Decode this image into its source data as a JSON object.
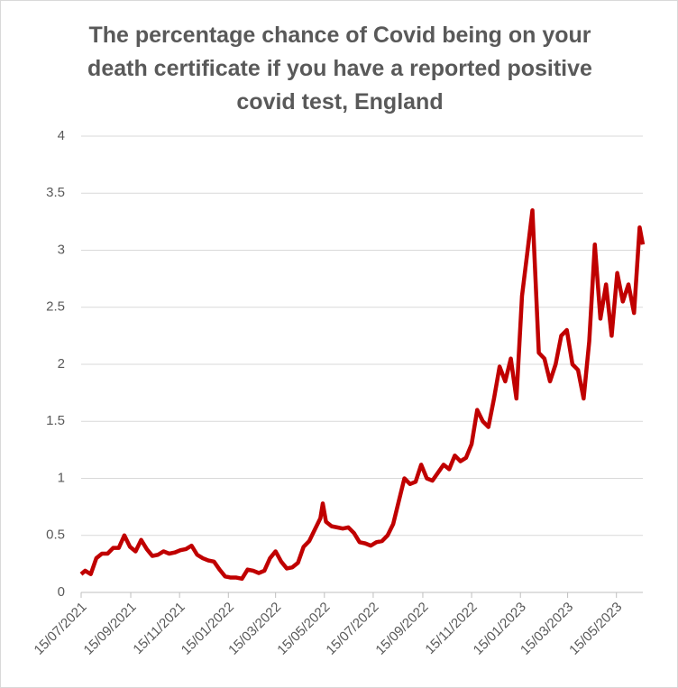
{
  "chart_data": {
    "type": "line",
    "title": "The percentage chance of Covid being on your death certificate if you have a reported positive covid test, England",
    "x": [
      "15/07/2021",
      "20/07/2021",
      "27/07/2021",
      "03/08/2021",
      "10/08/2021",
      "17/08/2021",
      "24/08/2021",
      "31/08/2021",
      "07/09/2021",
      "14/09/2021",
      "21/09/2021",
      "28/09/2021",
      "05/10/2021",
      "12/10/2021",
      "19/10/2021",
      "26/10/2021",
      "02/11/2021",
      "09/11/2021",
      "16/11/2021",
      "23/11/2021",
      "30/11/2021",
      "07/12/2021",
      "14/12/2021",
      "21/12/2021",
      "28/12/2021",
      "04/01/2022",
      "11/01/2022",
      "18/01/2022",
      "25/01/2022",
      "01/02/2022",
      "08/02/2022",
      "15/02/2022",
      "22/02/2022",
      "01/03/2022",
      "08/03/2022",
      "15/03/2022",
      "22/03/2022",
      "29/03/2022",
      "05/04/2022",
      "12/04/2022",
      "19/04/2022",
      "26/04/2022",
      "03/05/2022",
      "10/05/2022",
      "13/05/2022",
      "17/05/2022",
      "24/05/2022",
      "31/05/2022",
      "07/06/2022",
      "14/06/2022",
      "21/06/2022",
      "28/06/2022",
      "05/07/2022",
      "12/07/2022",
      "19/07/2022",
      "26/07/2022",
      "02/08/2022",
      "09/08/2022",
      "16/08/2022",
      "23/08/2022",
      "30/08/2022",
      "06/09/2022",
      "13/09/2022",
      "20/09/2022",
      "27/09/2022",
      "04/10/2022",
      "11/10/2022",
      "18/10/2022",
      "25/10/2022",
      "01/11/2022",
      "08/11/2022",
      "15/11/2022",
      "22/11/2022",
      "29/11/2022",
      "06/12/2022",
      "13/12/2022",
      "20/12/2022",
      "27/12/2022",
      "03/01/2023",
      "10/01/2023",
      "17/01/2023",
      "24/01/2023",
      "30/01/2023",
      "07/02/2023",
      "14/02/2023",
      "21/02/2023",
      "28/02/2023",
      "07/03/2023",
      "14/03/2023",
      "21/03/2023",
      "28/03/2023",
      "04/04/2023",
      "11/04/2023",
      "18/04/2023",
      "25/04/2023",
      "02/05/2023",
      "09/05/2023",
      "16/05/2023",
      "23/05/2023",
      "30/05/2023",
      "06/06/2023",
      "13/06/2023",
      "17/06/2023"
    ],
    "series": [
      {
        "name": "Percentage chance",
        "color": "#c00000",
        "values": [
          0.16,
          0.19,
          0.16,
          0.3,
          0.34,
          0.34,
          0.39,
          0.39,
          0.5,
          0.4,
          0.36,
          0.46,
          0.38,
          0.32,
          0.33,
          0.36,
          0.34,
          0.35,
          0.37,
          0.38,
          0.41,
          0.33,
          0.3,
          0.28,
          0.27,
          0.2,
          0.14,
          0.13,
          0.13,
          0.12,
          0.2,
          0.19,
          0.17,
          0.19,
          0.3,
          0.36,
          0.27,
          0.21,
          0.22,
          0.26,
          0.4,
          0.45,
          0.55,
          0.65,
          0.78,
          0.62,
          0.58,
          0.57,
          0.56,
          0.57,
          0.52,
          0.44,
          0.43,
          0.41,
          0.44,
          0.45,
          0.5,
          0.6,
          0.8,
          1.0,
          0.95,
          0.97,
          1.12,
          1.0,
          0.98,
          1.05,
          1.12,
          1.08,
          1.2,
          1.15,
          1.18,
          1.3,
          1.6,
          1.5,
          1.45,
          1.7,
          1.98,
          1.85,
          2.05,
          1.7,
          2.6,
          3.0,
          3.35,
          2.1,
          2.05,
          1.85,
          2.0,
          2.25,
          2.3,
          2.0,
          1.95,
          1.7,
          2.2,
          3.05,
          2.4,
          2.7,
          2.25,
          2.8,
          2.55,
          2.7,
          2.45,
          3.2,
          3.05
        ]
      }
    ],
    "xlim": [
      "15/07/2021",
      "17/06/2023"
    ],
    "xticks": [
      "15/07/2021",
      "15/09/2021",
      "15/11/2021",
      "15/01/2022",
      "15/03/2022",
      "15/05/2022",
      "15/07/2022",
      "15/09/2022",
      "15/11/2022",
      "15/01/2023",
      "15/03/2023",
      "15/05/2023"
    ],
    "ylim": [
      0,
      4
    ],
    "yticks": [
      0,
      0.5,
      1,
      1.5,
      2,
      2.5,
      3,
      3.5,
      4
    ],
    "grid": true
  }
}
